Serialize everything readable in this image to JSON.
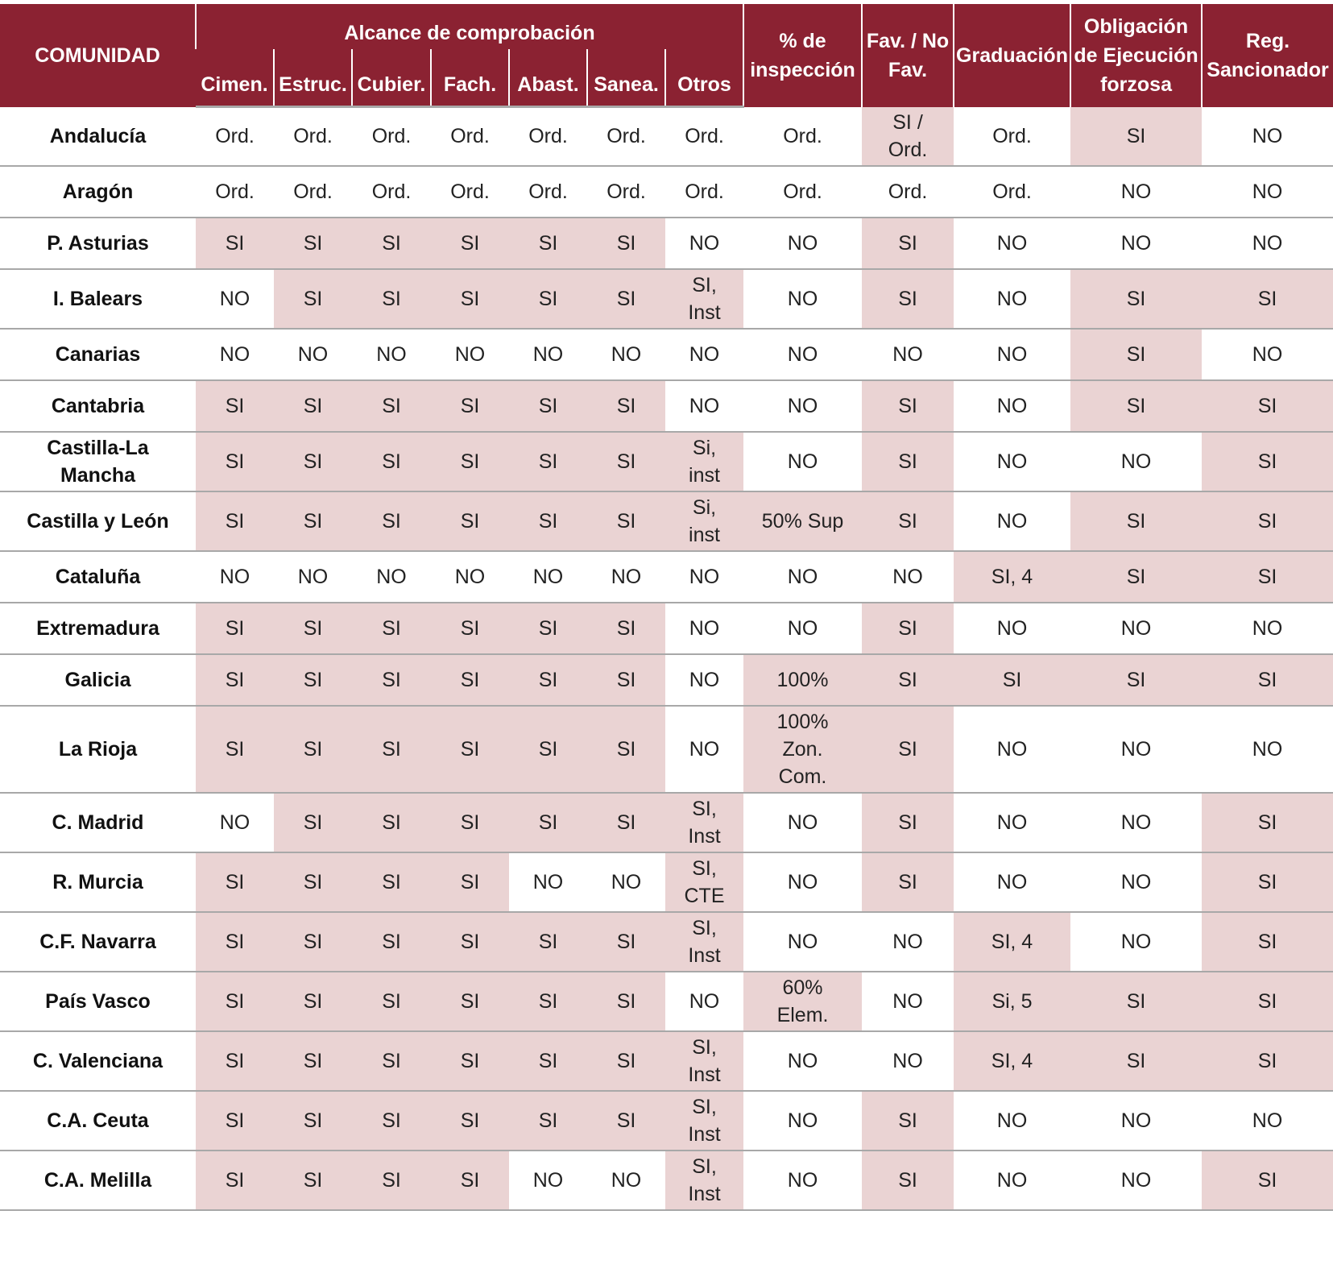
{
  "table": {
    "header": {
      "first": "COMUNIDAD",
      "group": "Alcance de comprobación",
      "subcolumns": [
        "Cimen.",
        "Estruc.",
        "Cubier.",
        "Fach.",
        "Abast.",
        "Sanea.",
        "Otros"
      ],
      "others": [
        "% de\ninspección",
        "Fav. / No\nFav.",
        "Graduación",
        "Obligación\nde Ejecución\nforzosa",
        "Reg.\nSancionador"
      ]
    },
    "header_color": "#8b2232",
    "highlight_color": "#ead3d3",
    "rows": [
      [
        "Andalucía",
        "Ord.",
        "Ord.",
        "Ord.",
        "Ord.",
        "Ord.",
        "Ord.",
        "Ord.",
        "Ord.",
        "SI /\nOrd.",
        "Ord.",
        "SI",
        "NO"
      ],
      [
        "Aragón",
        "Ord.",
        "Ord.",
        "Ord.",
        "Ord.",
        "Ord.",
        "Ord.",
        "Ord.",
        "Ord.",
        "Ord.",
        "Ord.",
        "NO",
        "NO"
      ],
      [
        "P. Asturias",
        "SI",
        "SI",
        "SI",
        "SI",
        "SI",
        "SI",
        "NO",
        "NO",
        "SI",
        "NO",
        "NO",
        "NO"
      ],
      [
        "I. Balears",
        "NO",
        "SI",
        "SI",
        "SI",
        "SI",
        "SI",
        "SI,\nInst",
        "NO",
        "SI",
        "NO",
        "SI",
        "SI"
      ],
      [
        "Canarias",
        "NO",
        "NO",
        "NO",
        "NO",
        "NO",
        "NO",
        "NO",
        "NO",
        "NO",
        "NO",
        "SI",
        "NO"
      ],
      [
        "Cantabria",
        "SI",
        "SI",
        "SI",
        "SI",
        "SI",
        "SI",
        "NO",
        "NO",
        "SI",
        "NO",
        "SI",
        "SI"
      ],
      [
        "Castilla-La\nMancha",
        "SI",
        "SI",
        "SI",
        "SI",
        "SI",
        "SI",
        "Si,\ninst",
        "NO",
        "SI",
        "NO",
        "NO",
        "SI"
      ],
      [
        "Castilla y León",
        "SI",
        "SI",
        "SI",
        "SI",
        "SI",
        "SI",
        "Si,\ninst",
        "50% Sup",
        "SI",
        "NO",
        "SI",
        "SI"
      ],
      [
        "Cataluña",
        "NO",
        "NO",
        "NO",
        "NO",
        "NO",
        "NO",
        "NO",
        "NO",
        "NO",
        "SI, 4",
        "SI",
        "SI"
      ],
      [
        "Extremadura",
        "SI",
        "SI",
        "SI",
        "SI",
        "SI",
        "SI",
        "NO",
        "NO",
        "SI",
        "NO",
        "NO",
        "NO"
      ],
      [
        "Galicia",
        "SI",
        "SI",
        "SI",
        "SI",
        "SI",
        "SI",
        "NO",
        "100%",
        "SI",
        "SI",
        "SI",
        "SI"
      ],
      [
        "La Rioja",
        "SI",
        "SI",
        "SI",
        "SI",
        "SI",
        "SI",
        "NO",
        "100%\nZon.\nCom.",
        "SI",
        "NO",
        "NO",
        "NO"
      ],
      [
        "C. Madrid",
        "NO",
        "SI",
        "SI",
        "SI",
        "SI",
        "SI",
        "SI,\nInst",
        "NO",
        "SI",
        "NO",
        "NO",
        "SI"
      ],
      [
        "R. Murcia",
        "SI",
        "SI",
        "SI",
        "SI",
        "NO",
        "NO",
        "SI,\nCTE",
        "NO",
        "SI",
        "NO",
        "NO",
        "SI"
      ],
      [
        "C.F. Navarra",
        "SI",
        "SI",
        "SI",
        "SI",
        "SI",
        "SI",
        "SI,\nInst",
        "NO",
        "NO",
        "SI, 4",
        "NO",
        "SI"
      ],
      [
        "País Vasco",
        "SI",
        "SI",
        "SI",
        "SI",
        "SI",
        "SI",
        "NO",
        "60%\nElem.",
        "NO",
        "Si, 5",
        "SI",
        "SI"
      ],
      [
        "C. Valenciana",
        "SI",
        "SI",
        "SI",
        "SI",
        "SI",
        "SI",
        "SI,\nInst",
        "NO",
        "NO",
        "SI, 4",
        "SI",
        "SI"
      ],
      [
        "C.A. Ceuta",
        "SI",
        "SI",
        "SI",
        "SI",
        "SI",
        "SI",
        "SI,\nInst",
        "NO",
        "SI",
        "NO",
        "NO",
        "NO"
      ],
      [
        "C.A. Melilla",
        "SI",
        "SI",
        "SI",
        "SI",
        "NO",
        "NO",
        "SI,\nInst",
        "NO",
        "SI",
        "NO",
        "NO",
        "SI"
      ]
    ]
  }
}
